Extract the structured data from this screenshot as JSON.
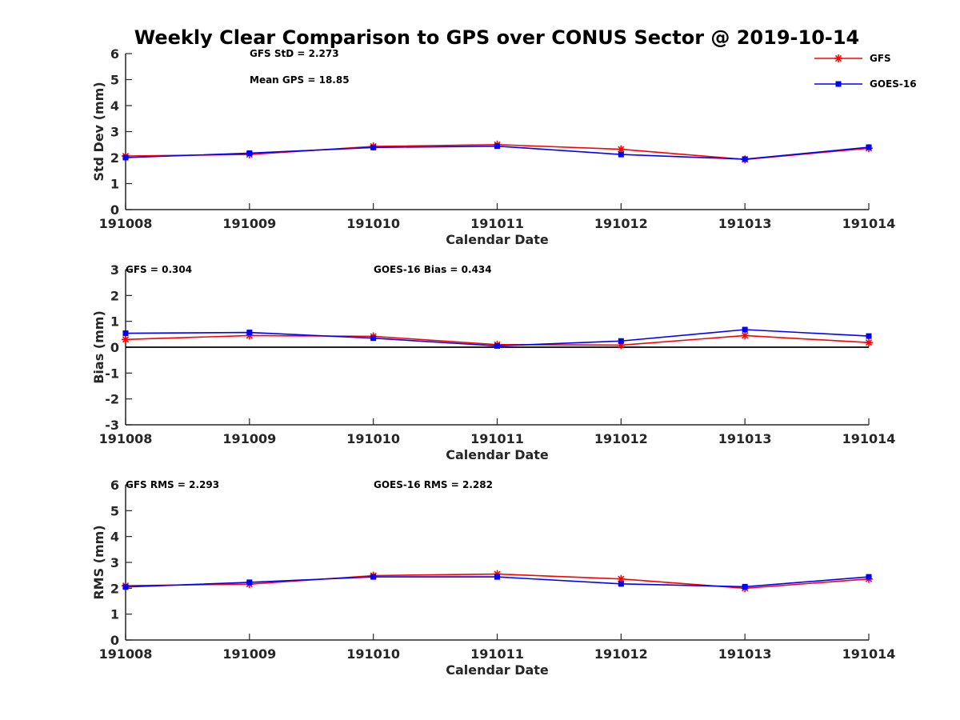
{
  "title": "Weekly Clear Comparison to GPS over CONUS Sector @ 2019-10-14",
  "legend": [
    {
      "name": "GFS",
      "color": "#ff0000",
      "marker": "asterisk"
    },
    {
      "name": "GOES-16",
      "color": "#0000ff",
      "marker": "square"
    }
  ],
  "chart_data": [
    {
      "type": "line",
      "x": [
        "191008",
        "191009",
        "191010",
        "191011",
        "191012",
        "191013",
        "191014"
      ],
      "xlabel": "Calendar Date",
      "ylabel": "Std Dev (mm)",
      "ylim": [
        0,
        6
      ],
      "yticks": [
        "0",
        "1",
        "2",
        "3",
        "4",
        "5",
        "6"
      ],
      "zero_line": false,
      "annotations": [
        "GFS StD = 2.273",
        "Mean GPS = 18.85"
      ],
      "series": [
        {
          "name": "GFS",
          "values": [
            2.06,
            2.12,
            2.43,
            2.5,
            2.32,
            1.93,
            2.36
          ]
        },
        {
          "name": "GOES-16",
          "values": [
            2.0,
            2.17,
            2.39,
            2.44,
            2.12,
            1.94,
            2.4
          ]
        }
      ]
    },
    {
      "type": "line",
      "x": [
        "191008",
        "191009",
        "191010",
        "191011",
        "191012",
        "191013",
        "191014"
      ],
      "xlabel": "Calendar Date",
      "ylabel": "Bias (mm)",
      "ylim": [
        -3,
        3
      ],
      "yticks": [
        "-3",
        "-2",
        "-1",
        "0",
        "1",
        "2",
        "3"
      ],
      "zero_line": true,
      "annotations": [
        "GFS = 0.304",
        "GOES-16 Bias  = 0.434"
      ],
      "series": [
        {
          "name": "GFS",
          "values": [
            0.3,
            0.45,
            0.42,
            0.1,
            0.08,
            0.45,
            0.18
          ]
        },
        {
          "name": "GOES-16",
          "values": [
            0.54,
            0.57,
            0.35,
            0.05,
            0.24,
            0.68,
            0.43
          ]
        }
      ]
    },
    {
      "type": "line",
      "x": [
        "191008",
        "191009",
        "191010",
        "191011",
        "191012",
        "191013",
        "191014"
      ],
      "xlabel": "Calendar Date",
      "ylabel": "RMS (mm)",
      "ylim": [
        0,
        6
      ],
      "yticks": [
        "0",
        "1",
        "2",
        "3",
        "4",
        "5",
        "6"
      ],
      "zero_line": false,
      "annotations": [
        "GFS RMS = 2.293",
        "GOES-16 RMS = 2.282"
      ],
      "series": [
        {
          "name": "GFS",
          "values": [
            2.1,
            2.16,
            2.49,
            2.55,
            2.36,
            2.0,
            2.36
          ]
        },
        {
          "name": "GOES-16",
          "values": [
            2.05,
            2.23,
            2.44,
            2.44,
            2.17,
            2.06,
            2.44
          ]
        }
      ]
    }
  ]
}
